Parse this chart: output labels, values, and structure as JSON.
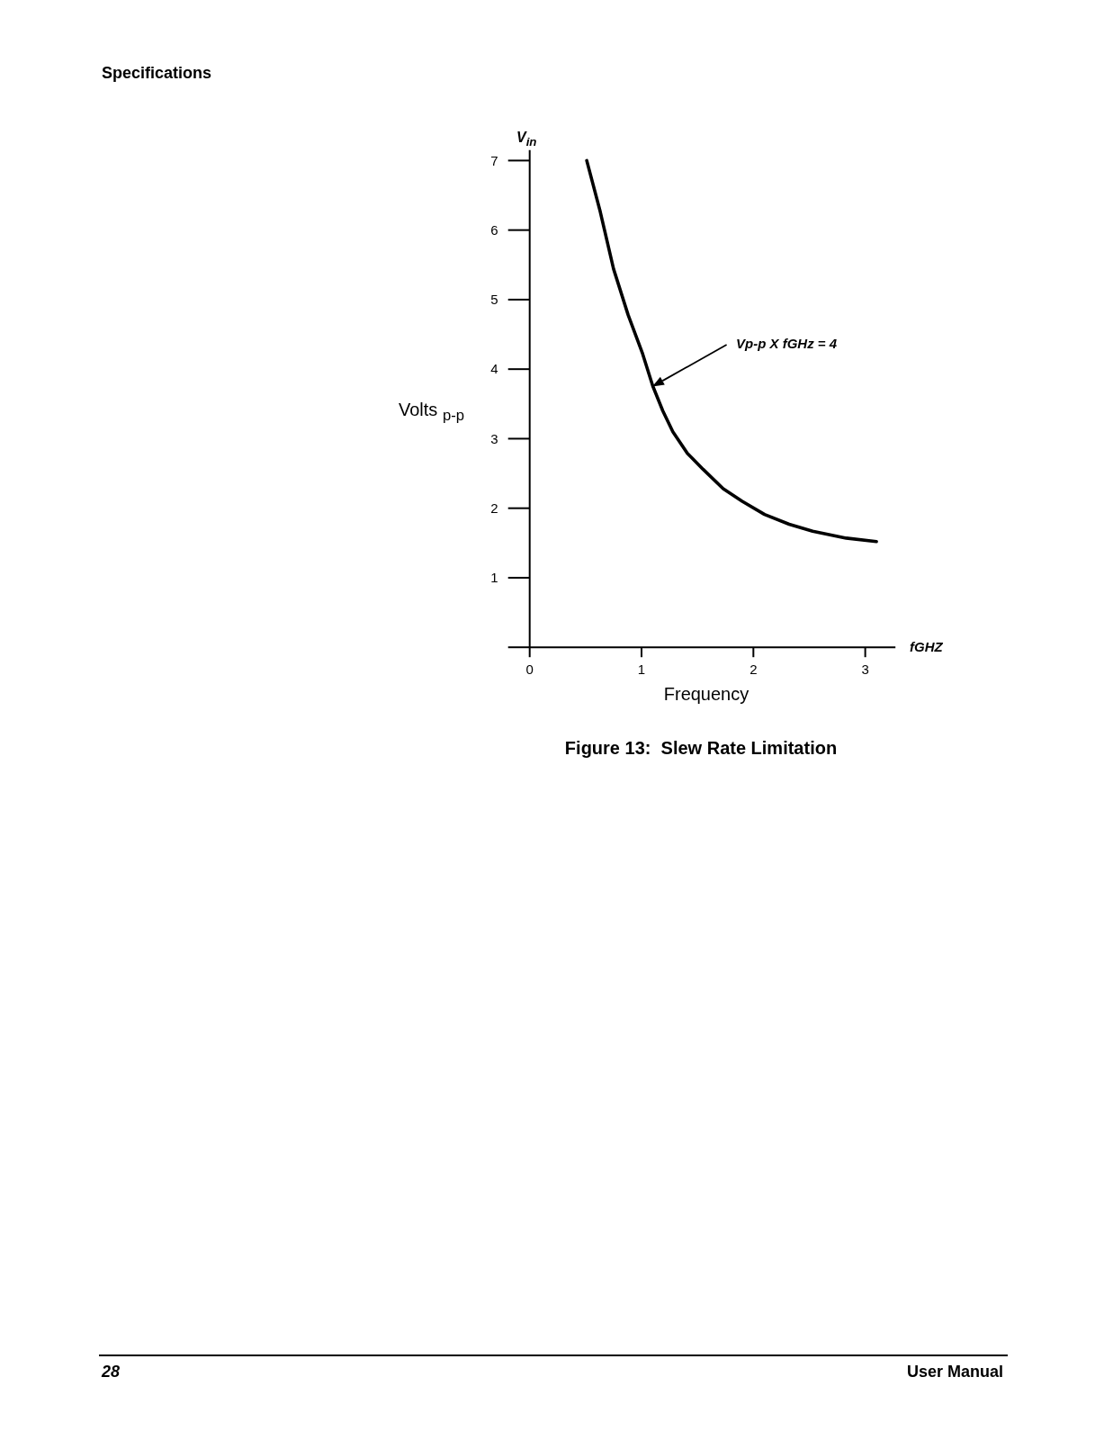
{
  "chart_data": {
    "type": "line",
    "title": "Figure 13:  Slew Rate Limitation",
    "xlabel": "Frequency",
    "ylabel": "Volts $_{p-p}$",
    "annotations": [
      "Specifications",
      "V$_{in}$",
      "fGHZ",
      "28",
      "User Manual",
      "Vp-p X fGHz = 4"
    ],
    "x": [
      0.51,
      0.63,
      0.75,
      0.88,
      1.01,
      1.1,
      1.19,
      1.28,
      1.41,
      1.55,
      1.73,
      1.9,
      2.1,
      2.32,
      2.53,
      2.83,
      3.1
    ],
    "series": [
      {
        "color": "#000000",
        "values": [
          7.0,
          6.27,
          5.44,
          4.78,
          4.22,
          3.76,
          3.4,
          3.1,
          2.79,
          2.56,
          2.28,
          2.1,
          1.91,
          1.77,
          1.67,
          1.57,
          1.52
        ]
      }
    ],
    "xlim": [
      0,
      3.27
    ],
    "ylim": [
      0,
      7.15
    ],
    "xticks": [
      0,
      1,
      2,
      3
    ],
    "yticks": [
      {
        "value": 0,
        "label": null
      },
      1,
      2,
      3,
      4,
      5,
      6,
      7
    ],
    "line_style": "solid"
  }
}
